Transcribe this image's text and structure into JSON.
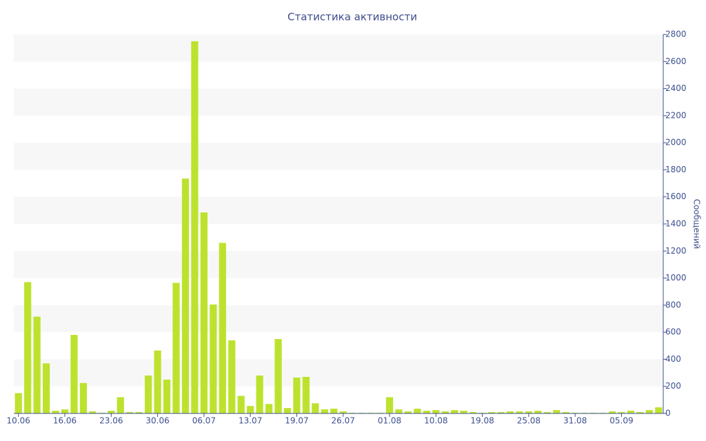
{
  "chart_data": {
    "type": "bar",
    "title": "Статистика активности",
    "y_label": "Сообщений",
    "categories": [
      "10.06",
      null,
      null,
      null,
      null,
      "16.06",
      null,
      null,
      null,
      null,
      "23.06",
      null,
      null,
      null,
      null,
      "30.06",
      null,
      null,
      null,
      null,
      "06.07",
      null,
      null,
      null,
      null,
      "13.07",
      null,
      null,
      null,
      null,
      "19.07",
      null,
      null,
      null,
      null,
      "26.07",
      null,
      null,
      null,
      null,
      "01.08",
      null,
      null,
      null,
      null,
      "10.08",
      null,
      null,
      null,
      null,
      "19.08",
      null,
      null,
      null,
      null,
      "25.08",
      null,
      null,
      null,
      null,
      "31.08",
      null,
      null,
      null,
      null,
      "05.09",
      null,
      null,
      null,
      null
    ],
    "values": [
      150,
      970,
      715,
      370,
      20,
      30,
      580,
      225,
      15,
      5,
      20,
      120,
      10,
      10,
      280,
      465,
      250,
      965,
      1735,
      2750,
      1485,
      805,
      1260,
      540,
      130,
      55,
      280,
      70,
      550,
      40,
      265,
      270,
      75,
      30,
      35,
      15,
      5,
      5,
      5,
      5,
      120,
      30,
      15,
      35,
      20,
      25,
      15,
      25,
      20,
      10,
      5,
      10,
      10,
      15,
      15,
      15,
      20,
      10,
      25,
      10,
      5,
      5,
      5,
      5,
      15,
      10,
      20,
      10,
      25,
      45
    ],
    "color": "#bde22e",
    "ylim": [
      0,
      2800
    ],
    "yticks": [
      0,
      200,
      400,
      600,
      800,
      1000,
      1200,
      1400,
      1600,
      1800,
      2000,
      2200,
      2400,
      2600,
      2800
    ],
    "y_axis_side": "right",
    "grid": true
  }
}
